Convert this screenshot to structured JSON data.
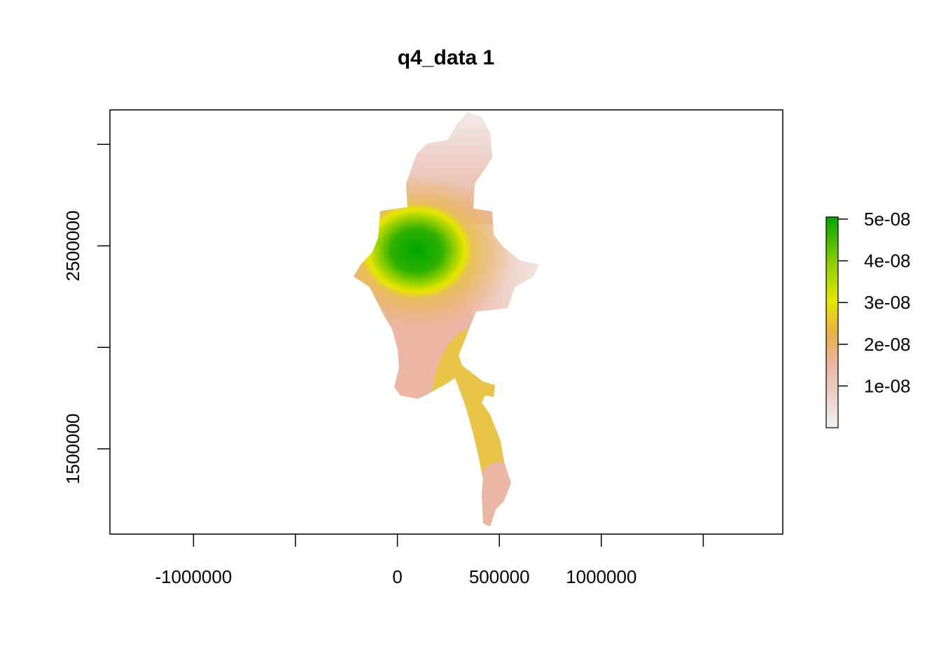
{
  "chart_data": {
    "type": "heatmap",
    "title": "q4_data 1",
    "xlabel": "",
    "ylabel": "",
    "x_ticks": [
      -1000000,
      -500000,
      0,
      500000,
      1000000,
      1500000
    ],
    "x_tick_labels": [
      "-1000000",
      "",
      "0",
      "500000",
      "1000000",
      ""
    ],
    "y_ticks": [
      1500000,
      2000000,
      2500000,
      3000000
    ],
    "y_tick_labels": [
      "1500000",
      "",
      "2500000",
      ""
    ],
    "xlim": [
      -1410000,
      1890000
    ],
    "ylim": [
      1080000,
      3170000
    ],
    "legend": {
      "position": "right",
      "min": 0,
      "max": 5.05e-08,
      "ticks": [
        1e-08,
        2e-08,
        3e-08,
        4e-08,
        5e-08
      ],
      "tick_labels": [
        "1e-08",
        "2e-08",
        "3e-08",
        "4e-08",
        "5e-08"
      ],
      "colors": [
        "#f2f2f2",
        "#ebb6a3",
        "#e8b046",
        "#e6e600",
        "#7fcb00",
        "#00a600"
      ]
    },
    "peak": {
      "x": 110000,
      "y": 2455000,
      "value": 5e-08
    }
  }
}
